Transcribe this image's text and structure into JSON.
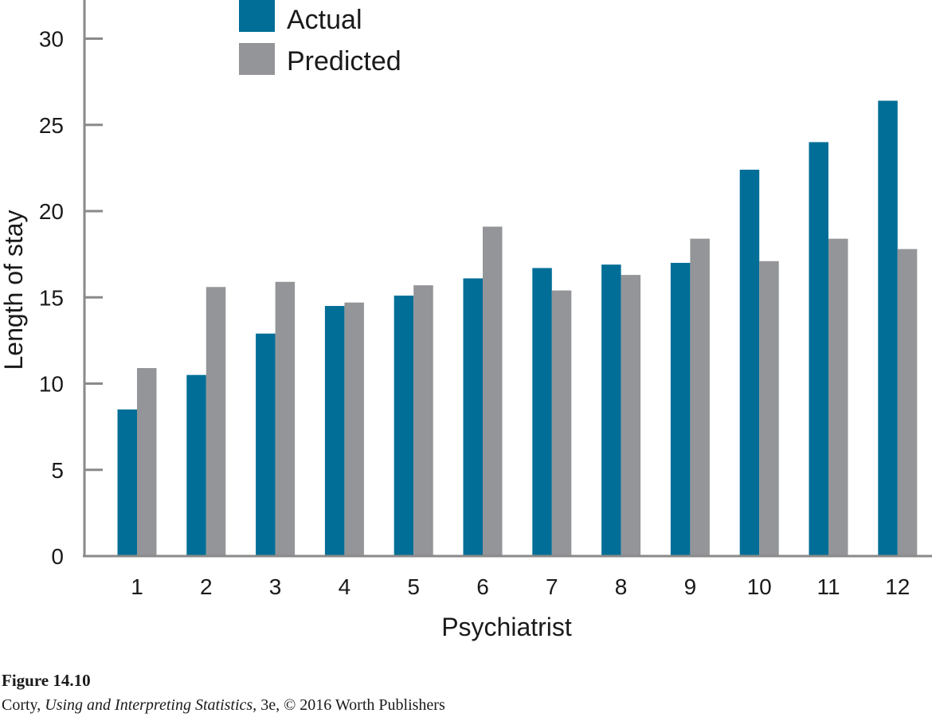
{
  "chart_data": {
    "type": "bar",
    "categories": [
      "1",
      "2",
      "3",
      "4",
      "5",
      "6",
      "7",
      "8",
      "9",
      "10",
      "11",
      "12"
    ],
    "series": [
      {
        "name": "Actual",
        "color": "#006e96",
        "values": [
          8.5,
          10.5,
          12.9,
          14.5,
          15.1,
          16.1,
          16.7,
          16.9,
          17.0,
          22.4,
          24.0,
          26.4
        ]
      },
      {
        "name": "Predicted",
        "color": "#939598",
        "values": [
          10.9,
          15.6,
          15.9,
          14.7,
          15.7,
          19.1,
          15.4,
          16.3,
          18.4,
          17.1,
          18.4,
          17.8
        ]
      }
    ],
    "xlabel": "Psychiatrist",
    "ylabel": "Length of stay",
    "ylim": [
      0,
      32
    ],
    "yticks": [
      0,
      5,
      10,
      15,
      20,
      25,
      30
    ],
    "grid": false,
    "legend": "top-left"
  },
  "caption": {
    "figure": "Figure 14.10",
    "author": "Corty, ",
    "book": "Using and Interpreting Statistics,",
    "rest": " 3e, © 2016 Worth Publishers"
  }
}
